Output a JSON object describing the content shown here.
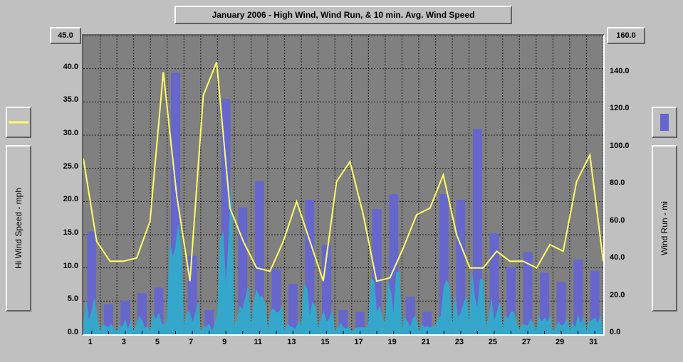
{
  "title": "January 2006 - High Wind, Wind Run, & 10 min. Avg. Wind Speed",
  "left_axis": {
    "label": "Hi Wind Speed - mph",
    "min": 0.0,
    "max": 45.0,
    "ticks": [
      "0.0",
      "5.0",
      "10.0",
      "15.0",
      "20.0",
      "25.0",
      "30.0",
      "35.0",
      "40.0",
      "45.0"
    ],
    "legend_color": "#ffff66"
  },
  "right_axis": {
    "label": "Wind Run - mi",
    "min": 0.0,
    "max": 160.0,
    "ticks": [
      "0.0",
      "20.0",
      "40.0",
      "60.0",
      "80.0",
      "100.0",
      "120.0",
      "140.0",
      "160.0"
    ],
    "legend_color": "#6666cc"
  },
  "x_axis": {
    "ticks": [
      "1",
      "3",
      "5",
      "7",
      "9",
      "11",
      "13",
      "15",
      "17",
      "19",
      "21",
      "23",
      "25",
      "27",
      "29",
      "31"
    ]
  },
  "bars": {
    "color": "#6666cc",
    "values": [
      55,
      16,
      18,
      22,
      25,
      140,
      42,
      13,
      126,
      68,
      82,
      35,
      27,
      72,
      48,
      13,
      12,
      67,
      75,
      20,
      12,
      75,
      72,
      110,
      54,
      36,
      44,
      33,
      28,
      40,
      34,
      18,
      66,
      90,
      30
    ]
  },
  "avg_wind": {
    "color": "#33aacc",
    "values_per_day_max": [
      22,
      8,
      8,
      10,
      12,
      60,
      18,
      6,
      80,
      28,
      25,
      16,
      10,
      30,
      16,
      6,
      6,
      30,
      36,
      10,
      6,
      30,
      28,
      35,
      20,
      12,
      14,
      10,
      8,
      12,
      10,
      6,
      30,
      40,
      12
    ]
  },
  "line": {
    "color": "#ffff66",
    "width": 2,
    "values": [
      26.5,
      14,
      11,
      11,
      11.5,
      17,
      39.5,
      21,
      8,
      36,
      41,
      19,
      14,
      10,
      9.5,
      14,
      20,
      14,
      8,
      23,
      26,
      18,
      8,
      8.5,
      13,
      18,
      19,
      24,
      15,
      10,
      10,
      12.5,
      11,
      11,
      10,
      13.5,
      12.5,
      23,
      27,
      11
    ]
  },
  "plot": {
    "background": "#808080",
    "grid_color": "#202020",
    "tick_color": "#000000"
  },
  "page_bg": "#c0c0c0",
  "fontsize": {
    "title": 12,
    "ticks": 11,
    "axis_label": 12
  }
}
